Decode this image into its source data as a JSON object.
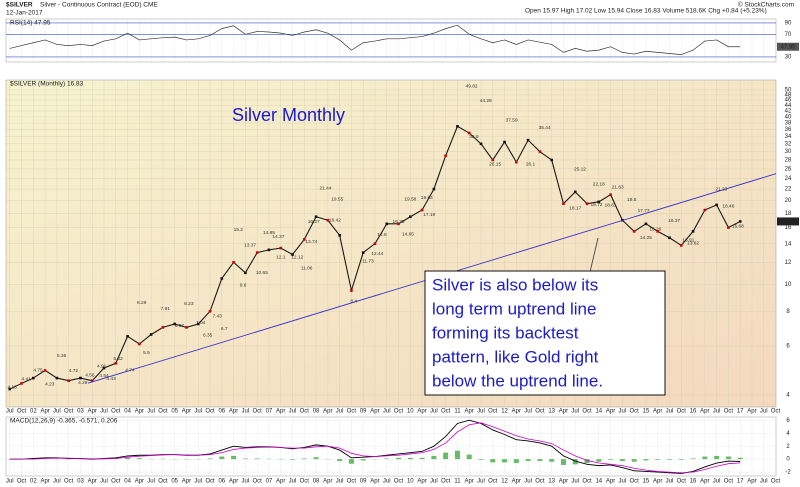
{
  "chart_data": {
    "type": "line",
    "title": "$SILVER",
    "subtitle": "Silver - Continuous Contract (EOD) CME",
    "date": "12-Jan-2017",
    "quote": "Open 15.97 High 17.02 Low 15.94 Close 16.83 Volume 518.6K Chg +0.84 (+5.23%)",
    "credit": "© StockCharts.com",
    "chart_title": "Silver Monthly",
    "annotation": [
      "Silver is also below its",
      "long term uptrend line",
      "forming its backtest",
      "pattern, like Gold right",
      "below the uptrend line."
    ],
    "log_scale": true,
    "grid": true,
    "xlim": [
      2001.42,
      2017.76
    ],
    "x": [
      2001.5,
      2001.75,
      2002,
      2002.25,
      2002.5,
      2002.75,
      2003,
      2003.25,
      2003.5,
      2003.75,
      2004,
      2004.25,
      2004.5,
      2004.75,
      2005,
      2005.25,
      2005.5,
      2005.75,
      2006,
      2006.25,
      2006.5,
      2006.75,
      2007,
      2007.25,
      2007.5,
      2007.75,
      2008,
      2008.25,
      2008.5,
      2008.75,
      2009,
      2009.25,
      2009.5,
      2009.75,
      2010,
      2010.25,
      2010.5,
      2010.75,
      2011,
      2011.25,
      2011.5,
      2011.75,
      2012,
      2012.25,
      2012.5,
      2012.75,
      2013,
      2013.25,
      2013.5,
      2013.75,
      2014,
      2014.25,
      2014.5,
      2014.75,
      2015,
      2015.25,
      2015.5,
      2015.75,
      2016,
      2016.25,
      2016.5,
      2016.75,
      2017
    ],
    "xticks": [
      {
        "value": 2001.5,
        "label": "Jul"
      },
      {
        "value": 2001.75,
        "label": "Oct"
      },
      {
        "value": 2002,
        "label": "02"
      },
      {
        "value": 2002.25,
        "label": "Apr"
      },
      {
        "value": 2002.5,
        "label": "Jul"
      },
      {
        "value": 2002.75,
        "label": "Oct"
      },
      {
        "value": 2003,
        "label": "03"
      },
      {
        "value": 2003.25,
        "label": "Apr"
      },
      {
        "value": 2003.5,
        "label": "Jul"
      },
      {
        "value": 2003.75,
        "label": "Oct"
      },
      {
        "value": 2004,
        "label": "04"
      },
      {
        "value": 2004.25,
        "label": "Apr"
      },
      {
        "value": 2004.5,
        "label": "Jul"
      },
      {
        "value": 2004.75,
        "label": "Oct"
      },
      {
        "value": 2005,
        "label": "05"
      },
      {
        "value": 2005.25,
        "label": "Apr"
      },
      {
        "value": 2005.5,
        "label": "Jul"
      },
      {
        "value": 2005.75,
        "label": "Oct"
      },
      {
        "value": 2006,
        "label": "06"
      },
      {
        "value": 2006.25,
        "label": "Apr"
      },
      {
        "value": 2006.5,
        "label": "Jul"
      },
      {
        "value": 2006.75,
        "label": "Oct"
      },
      {
        "value": 2007,
        "label": "07"
      },
      {
        "value": 2007.25,
        "label": "Apr"
      },
      {
        "value": 2007.5,
        "label": "Jul"
      },
      {
        "value": 2007.75,
        "label": "Oct"
      },
      {
        "value": 2008,
        "label": "08"
      },
      {
        "value": 2008.25,
        "label": "Apr"
      },
      {
        "value": 2008.5,
        "label": "Jul"
      },
      {
        "value": 2008.75,
        "label": "Oct"
      },
      {
        "value": 2009,
        "label": "09"
      },
      {
        "value": 2009.25,
        "label": "Apr"
      },
      {
        "value": 2009.5,
        "label": "Jul"
      },
      {
        "value": 2009.75,
        "label": "Oct"
      },
      {
        "value": 2010,
        "label": "10"
      },
      {
        "value": 2010.25,
        "label": "Apr"
      },
      {
        "value": 2010.5,
        "label": "Jul"
      },
      {
        "value": 2010.75,
        "label": "Oct"
      },
      {
        "value": 2011,
        "label": "11"
      },
      {
        "value": 2011.25,
        "label": "Apr"
      },
      {
        "value": 2011.5,
        "label": "Jul"
      },
      {
        "value": 2011.75,
        "label": "Oct"
      },
      {
        "value": 2012,
        "label": "12"
      },
      {
        "value": 2012.25,
        "label": "Apr"
      },
      {
        "value": 2012.5,
        "label": "Jul"
      },
      {
        "value": 2012.75,
        "label": "Oct"
      },
      {
        "value": 2013,
        "label": "13"
      },
      {
        "value": 2013.25,
        "label": "Apr"
      },
      {
        "value": 2013.5,
        "label": "Jul"
      },
      {
        "value": 2013.75,
        "label": "Oct"
      },
      {
        "value": 2014,
        "label": "14"
      },
      {
        "value": 2014.25,
        "label": "Apr"
      },
      {
        "value": 2014.5,
        "label": "Jul"
      },
      {
        "value": 2014.75,
        "label": "Oct"
      },
      {
        "value": 2015,
        "label": "15"
      },
      {
        "value": 2015.25,
        "label": "Apr"
      },
      {
        "value": 2015.5,
        "label": "Jul"
      },
      {
        "value": 2015.75,
        "label": "Oct"
      },
      {
        "value": 2016,
        "label": "16"
      },
      {
        "value": 2016.25,
        "label": "Apr"
      },
      {
        "value": 2016.5,
        "label": "Jul"
      },
      {
        "value": 2016.75,
        "label": "Oct"
      },
      {
        "value": 2017,
        "label": "17"
      },
      {
        "value": 2017.25,
        "label": "Apr"
      },
      {
        "value": 2017.5,
        "label": "Jul"
      },
      {
        "value": 2017.75,
        "label": "Oct"
      }
    ],
    "ylim": [
      3.62,
      54.3
    ],
    "yticks": [
      4,
      6,
      8,
      10,
      12,
      14,
      16,
      18,
      20,
      22,
      24,
      26,
      28,
      30,
      32,
      34,
      36,
      38,
      40,
      42,
      44,
      46,
      48,
      50
    ],
    "series": [
      {
        "name": "$SILVER (Monthly) 16.83",
        "color": "#1a1a1a",
        "values": [
          4.2,
          4.4,
          4.6,
          4.9,
          4.6,
          4.5,
          4.6,
          4.5,
          5.0,
          5.2,
          6.5,
          6.1,
          6.6,
          7.0,
          7.2,
          7.0,
          7.2,
          8.0,
          10.5,
          12.0,
          11.0,
          13.0,
          13.3,
          13.5,
          12.8,
          14.5,
          17.5,
          17.0,
          15.0,
          9.5,
          13.0,
          14.0,
          16.5,
          16.5,
          17.5,
          18.5,
          22.0,
          29.0,
          37.0,
          35.0,
          32.0,
          28.0,
          32.5,
          27.5,
          33.0,
          30.0,
          28.0,
          19.5,
          21.5,
          19.5,
          19.8,
          21.0,
          17.0,
          15.5,
          16.5,
          15.5,
          14.7,
          13.8,
          15.5,
          18.5,
          19.3,
          16.0,
          16.83
        ]
      }
    ],
    "last_value": 16.83,
    "point_labels": [
      {
        "x": 2001.55,
        "value": 4.13
      },
      {
        "x": 2001.85,
        "value": 4.41
      },
      {
        "x": 2002.1,
        "value": 4.75
      },
      {
        "x": 2002.35,
        "value": 4.23
      },
      {
        "x": 2002.6,
        "value": 5.36
      },
      {
        "x": 2002.85,
        "value": 4.72
      },
      {
        "x": 2003.05,
        "value": 4.29
      },
      {
        "x": 2003.2,
        "value": 4.56
      },
      {
        "x": 2003.45,
        "value": 4.91
      },
      {
        "x": 2003.5,
        "value": 4.54
      },
      {
        "x": 2003.65,
        "value": 4.43
      },
      {
        "x": 2003.8,
        "value": 5.22
      },
      {
        "x": 2004.05,
        "value": 4.74
      },
      {
        "x": 2004.3,
        "value": 8.29
      },
      {
        "x": 2004.4,
        "value": 5.5
      },
      {
        "x": 2004.8,
        "value": 7.91
      },
      {
        "x": 2005.1,
        "value": 6.87
      },
      {
        "x": 2005.3,
        "value": 8.23
      },
      {
        "x": 2005.55,
        "value": 7.04
      },
      {
        "x": 2005.7,
        "value": 6.35
      },
      {
        "x": 2005.9,
        "value": 7.43
      },
      {
        "x": 2006.05,
        "value": 6.7
      },
      {
        "x": 2006.35,
        "value": 15.2
      },
      {
        "x": 2006.45,
        "value": 9.6
      },
      {
        "x": 2006.6,
        "value": 13.37
      },
      {
        "x": 2006.85,
        "value": 10.65
      },
      {
        "x": 2007.0,
        "value": 14.85
      },
      {
        "x": 2007.2,
        "value": 14.37
      },
      {
        "x": 2007.25,
        "value": 12.1
      },
      {
        "x": 2007.6,
        "value": 12.12
      },
      {
        "x": 2007.8,
        "value": 11.06
      },
      {
        "x": 2007.9,
        "value": 13.74
      },
      {
        "x": 2007.95,
        "value": 16.27
      },
      {
        "x": 2008.2,
        "value": 21.44
      },
      {
        "x": 2008.45,
        "value": 19.55
      },
      {
        "x": 2008.4,
        "value": 16.42
      },
      {
        "x": 2008.8,
        "value": 8.4
      },
      {
        "x": 2009.1,
        "value": 11.73
      },
      {
        "x": 2009.3,
        "value": 12.44
      },
      {
        "x": 2009.4,
        "value": 14.6
      },
      {
        "x": 2009.75,
        "value": 16.25
      },
      {
        "x": 2009.95,
        "value": 14.65
      },
      {
        "x": 2010.0,
        "value": 19.58
      },
      {
        "x": 2010.35,
        "value": 19.84
      },
      {
        "x": 2010.4,
        "value": 17.19
      },
      {
        "x": 2011.3,
        "value": 49.82
      },
      {
        "x": 2011.6,
        "value": 44.28
      },
      {
        "x": 2011.35,
        "value": 32.8
      },
      {
        "x": 2011.8,
        "value": 26.15
      },
      {
        "x": 2012.15,
        "value": 37.59
      },
      {
        "x": 2012.55,
        "value": 26.1
      },
      {
        "x": 2012.85,
        "value": 35.44
      },
      {
        "x": 2013.6,
        "value": 25.12
      },
      {
        "x": 2013.5,
        "value": 18.17
      },
      {
        "x": 2014.0,
        "value": 22.18
      },
      {
        "x": 2013.95,
        "value": 18.72
      },
      {
        "x": 2014.4,
        "value": 21.63
      },
      {
        "x": 2014.25,
        "value": 18.61
      },
      {
        "x": 2014.7,
        "value": 19.5
      },
      {
        "x": 2014.95,
        "value": 17.77
      },
      {
        "x": 2015.0,
        "value": 14.25
      },
      {
        "x": 2015.2,
        "value": 15.26
      },
      {
        "x": 2015.6,
        "value": 16.37
      },
      {
        "x": 2015.9,
        "value": 13.91
      },
      {
        "x": 2016.0,
        "value": 13.62
      },
      {
        "x": 2016.6,
        "value": 21.23
      },
      {
        "x": 2016.75,
        "value": 18.46
      },
      {
        "x": 2016.95,
        "value": 15.68
      }
    ],
    "trendline": {
      "x": [
        2003.16,
        2017.76
      ],
      "values": [
        4.41,
        25
      ],
      "color": "#3333cc"
    },
    "rsi": {
      "label": "RSI(14) 47.95",
      "ylim": [
        21,
        97
      ],
      "yticks": [
        30,
        70,
        90
      ],
      "last_value": 47.95,
      "color": "#333333",
      "values": [
        45,
        50,
        55,
        60,
        52,
        50,
        52,
        50,
        58,
        62,
        72,
        60,
        62,
        64,
        65,
        60,
        62,
        68,
        80,
        85,
        70,
        75,
        74,
        72,
        68,
        74,
        78,
        72,
        60,
        42,
        55,
        58,
        62,
        62,
        64,
        66,
        72,
        80,
        86,
        70,
        62,
        55,
        60,
        52,
        60,
        56,
        52,
        38,
        45,
        40,
        42,
        48,
        38,
        35,
        40,
        38,
        36,
        34,
        42,
        58,
        60,
        48,
        48
      ]
    },
    "macd": {
      "label": "MACD(12,26,9) -0.365, -0.571, 0.206",
      "ylim": [
        -2.6,
        6.5
      ],
      "yticks": [
        -2,
        0,
        2,
        4,
        6
      ],
      "macd_color": "#000000",
      "signal_color": "#cc00cc",
      "histogram_color": "#66bb66",
      "macd_values": [
        0,
        0,
        0.1,
        0.2,
        0.2,
        0.1,
        0.1,
        0,
        0.1,
        0.2,
        0.5,
        0.6,
        0.6,
        0.7,
        0.7,
        0.6,
        0.6,
        0.8,
        1.4,
        2.0,
        1.8,
        1.9,
        1.9,
        1.8,
        1.6,
        1.8,
        2.2,
        2.0,
        1.4,
        0.2,
        0.3,
        0.4,
        0.6,
        0.8,
        1.0,
        1.2,
        2.0,
        3.5,
        5.5,
        6.0,
        5.5,
        4.5,
        3.8,
        3.0,
        2.8,
        2.5,
        2.0,
        0.5,
        -0.3,
        -0.8,
        -1.0,
        -0.9,
        -1.3,
        -1.8,
        -1.9,
        -2.0,
        -2.1,
        -2.2,
        -1.9,
        -1.2,
        -0.6,
        -0.3,
        -0.365
      ],
      "signal_values": [
        0,
        0,
        0,
        0.1,
        0.15,
        0.15,
        0.1,
        0.05,
        0.05,
        0.1,
        0.3,
        0.45,
        0.55,
        0.65,
        0.7,
        0.65,
        0.6,
        0.7,
        1.0,
        1.5,
        1.7,
        1.8,
        1.85,
        1.8,
        1.7,
        1.7,
        1.9,
        2.0,
        1.7,
        0.9,
        0.5,
        0.4,
        0.5,
        0.6,
        0.8,
        1.0,
        1.5,
        2.5,
        4.2,
        5.3,
        5.6,
        5.0,
        4.3,
        3.6,
        3.1,
        2.8,
        2.4,
        1.4,
        0.5,
        -0.2,
        -0.6,
        -0.8,
        -1.0,
        -1.4,
        -1.7,
        -1.9,
        -2.0,
        -2.1,
        -2.0,
        -1.6,
        -1.1,
        -0.7,
        -0.571
      ],
      "histogram_values": [
        0,
        0,
        0.1,
        0.1,
        0.05,
        -0.05,
        0,
        -0.05,
        0.05,
        0.1,
        0.2,
        0.15,
        0.05,
        0.05,
        0,
        -0.05,
        0,
        0.1,
        0.4,
        0.5,
        0.1,
        0.1,
        0.05,
        0,
        -0.1,
        0.1,
        0.3,
        0,
        -0.3,
        -0.7,
        -0.2,
        0,
        0.1,
        0.2,
        0.2,
        0.2,
        0.5,
        1.0,
        1.3,
        0.7,
        -0.1,
        -0.5,
        -0.5,
        -0.6,
        -0.3,
        -0.3,
        -0.4,
        -0.9,
        -0.8,
        -0.6,
        -0.4,
        -0.1,
        -0.3,
        -0.4,
        -0.2,
        -0.1,
        -0.1,
        -0.1,
        0.1,
        0.4,
        0.5,
        0.4,
        0.206
      ]
    }
  }
}
